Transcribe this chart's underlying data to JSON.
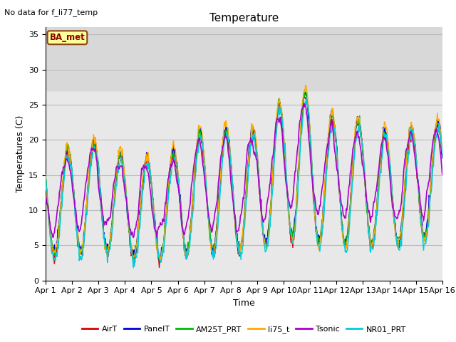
{
  "title": "Temperature",
  "xlabel": "Time",
  "ylabel": "Temperatures (C)",
  "no_data_label": "No data for f_li77_temp",
  "ba_met_label": "BA_met",
  "ylim": [
    0,
    36
  ],
  "yticks": [
    0,
    5,
    10,
    15,
    20,
    25,
    30,
    35
  ],
  "x_tick_labels": [
    "Apr 1",
    "Apr 2",
    "Apr 3",
    "Apr 4",
    "Apr 5",
    "Apr 6",
    "Apr 7",
    "Apr 8",
    "Apr 9",
    "Apr 10",
    "Apr 11",
    "Apr 12",
    "Apr 13",
    "Apr 14",
    "Apr 15",
    "Apr 16"
  ],
  "series_colors": {
    "AirT": "#dd0000",
    "PanelT": "#0000dd",
    "AM25T_PRT": "#00bb00",
    "li75_t": "#ffaa00",
    "Tsonic": "#aa00cc",
    "NR01_PRT": "#00ccdd"
  },
  "plot_bg_color": "#e8e8e8",
  "shaded_region_color": "#d8d8d8",
  "shaded_region": [
    27,
    36
  ],
  "grid_color": "#cccccc",
  "title_fontsize": 11,
  "label_fontsize": 9,
  "tick_fontsize": 8,
  "n_days": 15,
  "pts_per_day": 48,
  "seed": 12345
}
